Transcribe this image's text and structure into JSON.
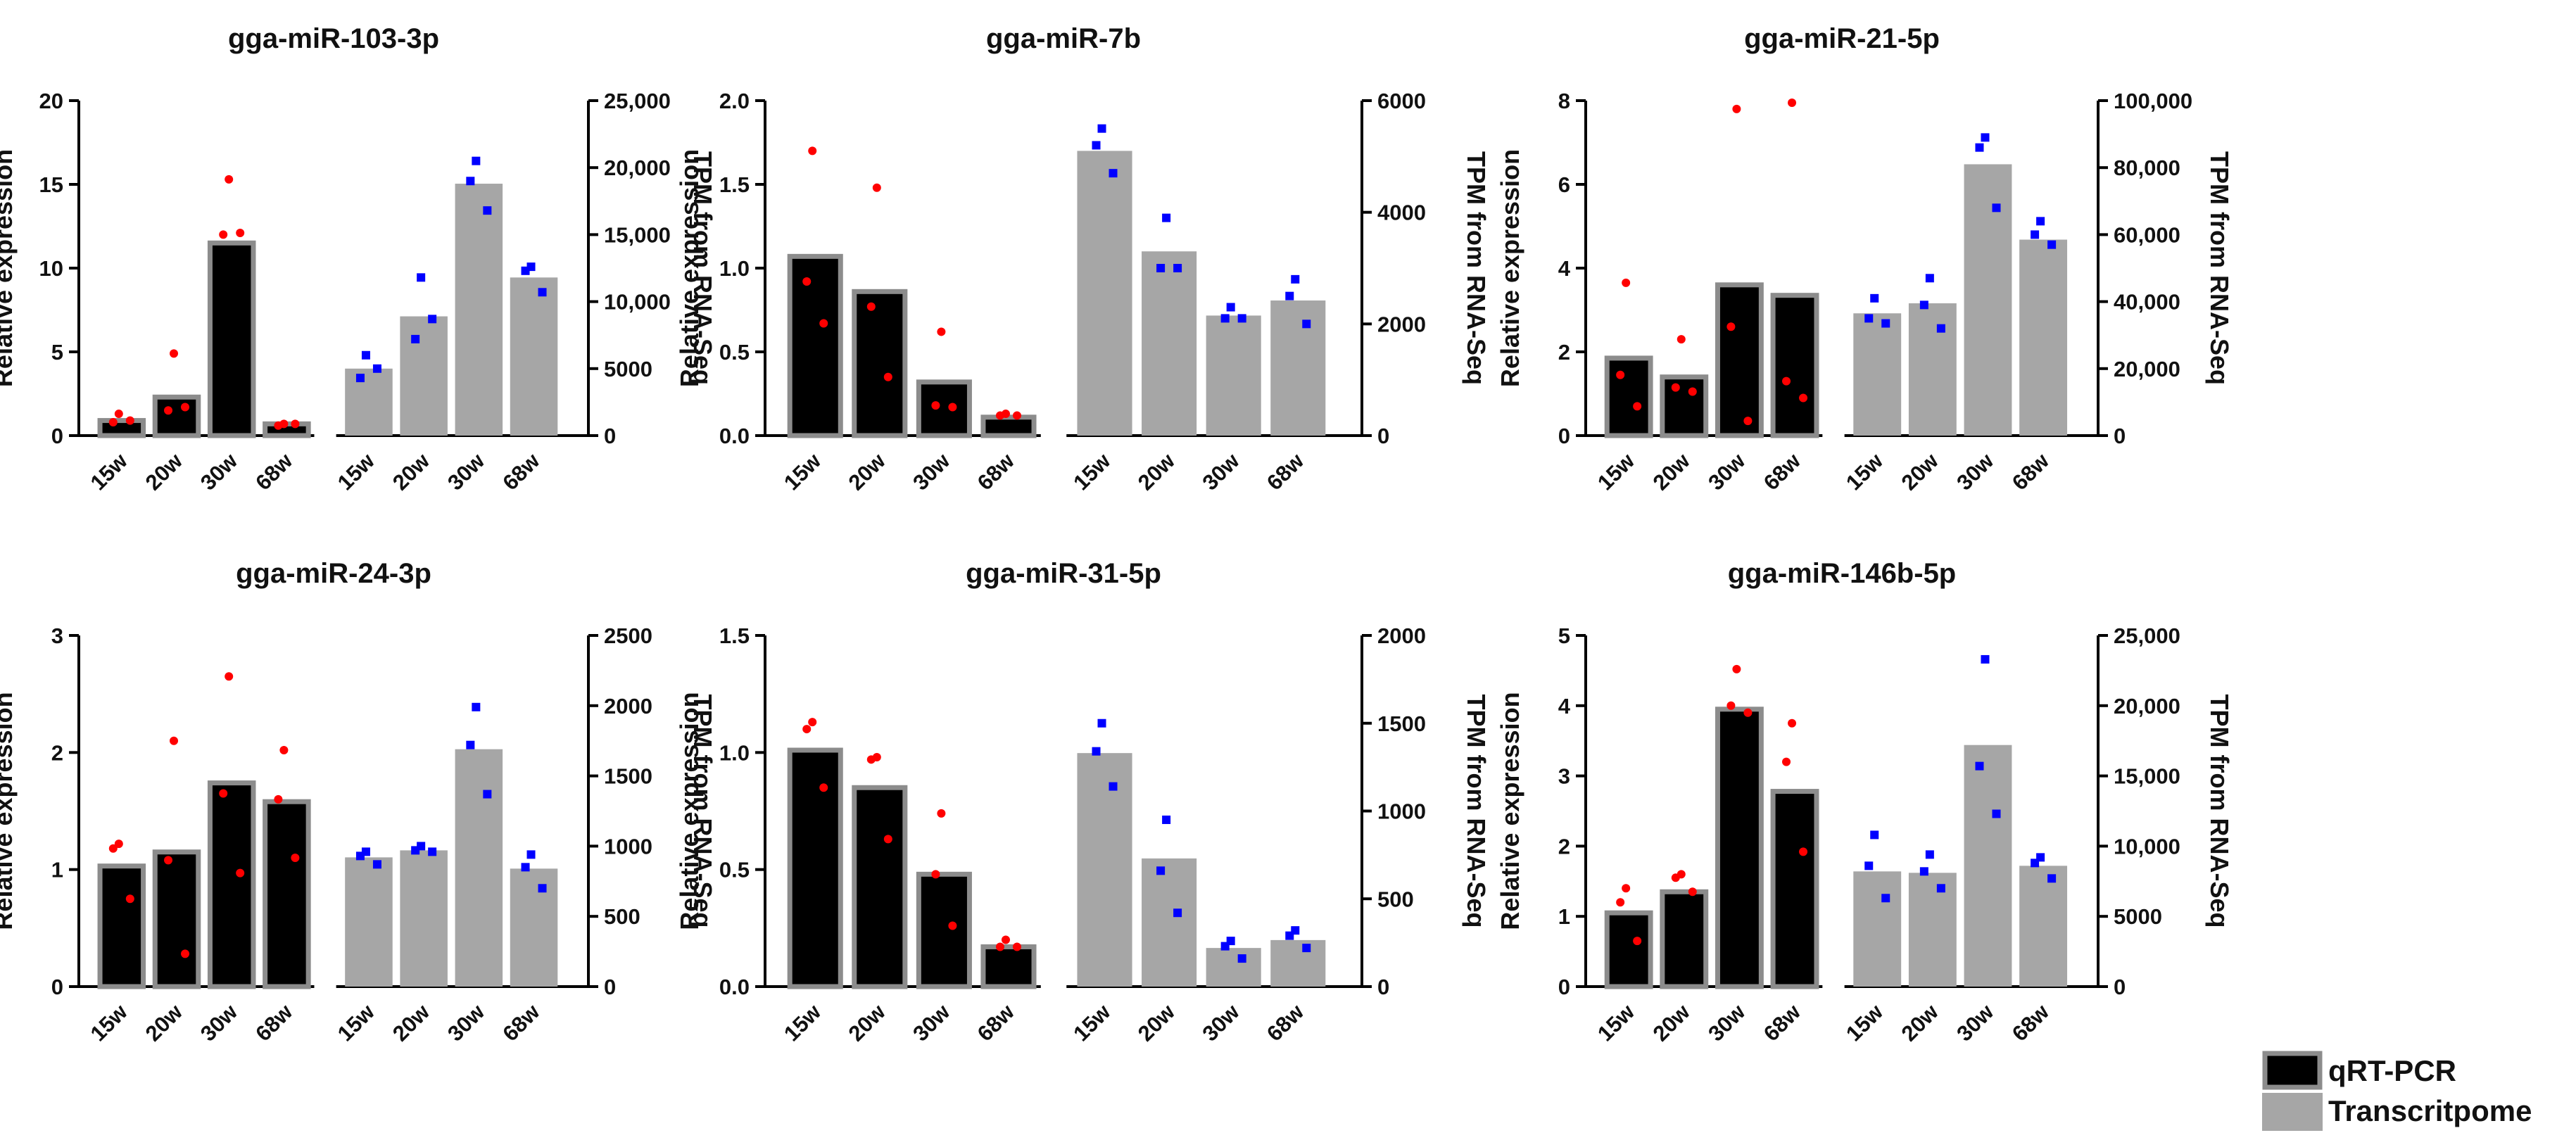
{
  "colors": {
    "qrt_bar": "#000000",
    "qrt_border": "#8c8c8c",
    "transcriptome_bar": "#a6a6a6",
    "qrt_point": "#ff0000",
    "transcriptome_point": "#0000ff",
    "axis": "#000000"
  },
  "legend": {
    "items": [
      {
        "label": "qRT-PCR",
        "color": "#000000",
        "border": "#8c8c8c"
      },
      {
        "label": "Transcritpome",
        "color": "#a6a6a6",
        "border": "#a6a6a6"
      }
    ]
  },
  "chart_data": [
    {
      "type": "bar",
      "title": "gga-miR-103-3p",
      "categories": [
        "15w",
        "20w",
        "30w",
        "68w"
      ],
      "ylabel_left": "Relative expression",
      "ylabel_right": "TPM from RNA-Seq",
      "ylim_left": [
        0,
        20
      ],
      "ylim_right": [
        0,
        25000
      ],
      "yticks_left": [
        0,
        5,
        10,
        15,
        20
      ],
      "yticks_left_labels": [
        "0",
        "5",
        "10",
        "15",
        "20"
      ],
      "yticks_right": [
        0,
        5000,
        10000,
        15000,
        20000,
        25000
      ],
      "yticks_right_labels": [
        "0",
        "5000",
        "10,000",
        "15,000",
        "20,000",
        "25,000"
      ],
      "series": [
        {
          "name": "qRT-PCR",
          "axis": "left",
          "values": [
            0.9,
            2.3,
            11.5,
            0.7
          ],
          "points": [
            [
              1.3,
              0.8,
              0.9
            ],
            [
              4.9,
              1.5,
              1.7
            ],
            [
              15.3,
              12.0,
              12.1
            ],
            [
              0.7,
              0.6,
              0.7
            ]
          ]
        },
        {
          "name": "Transcritpome",
          "axis": "right",
          "values": [
            5000,
            8900,
            18800,
            11800
          ],
          "points": [
            [
              6000,
              4300,
              5000
            ],
            [
              11800,
              7200,
              8700
            ],
            [
              20500,
              19000,
              16800
            ],
            [
              12600,
              12300,
              10700
            ]
          ]
        }
      ]
    },
    {
      "type": "bar",
      "title": "gga-miR-7b",
      "categories": [
        "15w",
        "20w",
        "30w",
        "68w"
      ],
      "ylabel_left": "Relative expression",
      "ylabel_right": "TPM from RNA-Seq",
      "ylim_left": [
        0,
        2.0
      ],
      "ylim_right": [
        0,
        6000
      ],
      "yticks_left": [
        0,
        0.5,
        1.0,
        1.5,
        2.0
      ],
      "yticks_left_labels": [
        "0.0",
        "0.5",
        "1.0",
        "1.5",
        "2.0"
      ],
      "yticks_right": [
        0,
        2000,
        4000,
        6000
      ],
      "yticks_right_labels": [
        "0",
        "2000",
        "4000",
        "6000"
      ],
      "series": [
        {
          "name": "qRT-PCR",
          "axis": "left",
          "values": [
            1.07,
            0.86,
            0.32,
            0.11
          ],
          "points": [
            [
              1.7,
              0.92,
              0.67
            ],
            [
              1.48,
              0.77,
              0.35
            ],
            [
              0.62,
              0.18,
              0.17
            ],
            [
              0.13,
              0.12,
              0.12
            ]
          ]
        },
        {
          "name": "Transcritpome",
          "axis": "right",
          "values": [
            5100,
            3300,
            2150,
            2420
          ],
          "points": [
            [
              5500,
              5200,
              4700
            ],
            [
              3900,
              3000,
              3000
            ],
            [
              2300,
              2100,
              2100
            ],
            [
              2800,
              2500,
              2000
            ]
          ]
        }
      ]
    },
    {
      "type": "bar",
      "title": "gga-miR-21-5p",
      "categories": [
        "15w",
        "20w",
        "30w",
        "68w"
      ],
      "ylabel_left": "Relative expression",
      "ylabel_right": "TPM from RNA-Seq",
      "ylim_left": [
        0,
        8
      ],
      "ylim_right": [
        0,
        100000
      ],
      "yticks_left": [
        0,
        2,
        4,
        6,
        8
      ],
      "yticks_left_labels": [
        "0",
        "2",
        "4",
        "6",
        "8"
      ],
      "yticks_right": [
        0,
        20000,
        40000,
        60000,
        80000,
        100000
      ],
      "yticks_right_labels": [
        "0",
        "20,000",
        "40,000",
        "60,000",
        "80,000",
        "100,000"
      ],
      "series": [
        {
          "name": "qRT-PCR",
          "axis": "left",
          "values": [
            1.85,
            1.4,
            3.6,
            3.35
          ],
          "points": [
            [
              3.65,
              1.45,
              0.7
            ],
            [
              2.3,
              1.15,
              1.05
            ],
            [
              7.8,
              2.6,
              0.35
            ],
            [
              7.95,
              1.3,
              0.9
            ]
          ]
        },
        {
          "name": "Transcritpome",
          "axis": "right",
          "values": [
            36500,
            39500,
            81000,
            58500
          ],
          "points": [
            [
              41000,
              35000,
              33500
            ],
            [
              47000,
              39000,
              32000
            ],
            [
              89000,
              86000,
              68000
            ],
            [
              64000,
              60000,
              57000
            ]
          ]
        }
      ]
    },
    {
      "type": "bar",
      "title": "gga-miR-24-3p",
      "categories": [
        "15w",
        "20w",
        "30w",
        "68w"
      ],
      "ylabel_left": "Relative expression",
      "ylabel_right": "TPM from RNA-Seq",
      "ylim_left": [
        0,
        3
      ],
      "ylim_right": [
        0,
        2500
      ],
      "yticks_left": [
        0,
        1,
        2,
        3
      ],
      "yticks_left_labels": [
        "0",
        "1",
        "2",
        "3"
      ],
      "yticks_right": [
        0,
        500,
        1000,
        1500,
        2000,
        2500
      ],
      "yticks_right_labels": [
        "0",
        "500",
        "1000",
        "1500",
        "2000",
        "2500"
      ],
      "series": [
        {
          "name": "qRT-PCR",
          "axis": "left",
          "values": [
            1.03,
            1.15,
            1.74,
            1.58
          ],
          "points": [
            [
              1.22,
              1.18,
              0.75
            ],
            [
              2.1,
              1.08,
              0.28
            ],
            [
              2.65,
              1.65,
              0.97
            ],
            [
              2.02,
              1.6,
              1.1
            ]
          ]
        },
        {
          "name": "Transcritpome",
          "axis": "right",
          "values": [
            920,
            970,
            1690,
            840
          ],
          "points": [
            [
              960,
              930,
              870
            ],
            [
              1000,
              970,
              960
            ],
            [
              1990,
              1720,
              1370
            ],
            [
              940,
              850,
              700
            ]
          ]
        }
      ]
    },
    {
      "type": "bar",
      "title": "gga-miR-31-5p",
      "categories": [
        "15w",
        "20w",
        "30w",
        "68w"
      ],
      "ylabel_left": "Relative expression",
      "ylabel_right": "TPM from RNA-Seq",
      "ylim_left": [
        0,
        1.5
      ],
      "ylim_right": [
        0,
        2000
      ],
      "yticks_left": [
        0,
        0.5,
        1.0,
        1.5
      ],
      "yticks_left_labels": [
        "0.0",
        "0.5",
        "1.0",
        "1.5"
      ],
      "yticks_right": [
        0,
        500,
        1000,
        1500,
        2000
      ],
      "yticks_right_labels": [
        "0",
        "500",
        "1000",
        "1500",
        "2000"
      ],
      "series": [
        {
          "name": "qRT-PCR",
          "axis": "left",
          "values": [
            1.01,
            0.85,
            0.48,
            0.17
          ],
          "points": [
            [
              1.13,
              1.1,
              0.85
            ],
            [
              0.98,
              0.97,
              0.63
            ],
            [
              0.74,
              0.48,
              0.26
            ],
            [
              0.2,
              0.17,
              0.17
            ]
          ]
        },
        {
          "name": "Transcritpome",
          "axis": "right",
          "values": [
            1330,
            730,
            220,
            265
          ],
          "points": [
            [
              1500,
              1340,
              1140
            ],
            [
              950,
              660,
              420
            ],
            [
              260,
              230,
              160
            ],
            [
              320,
              290,
              220
            ]
          ]
        }
      ]
    },
    {
      "type": "bar",
      "title": "gga-miR-146b-5p",
      "categories": [
        "15w",
        "20w",
        "30w",
        "68w"
      ],
      "ylabel_left": "Relative expression",
      "ylabel_right": "TPM from RNA-Seq",
      "ylim_left": [
        0,
        5
      ],
      "ylim_right": [
        0,
        25000
      ],
      "yticks_left": [
        0,
        1,
        2,
        3,
        4,
        5
      ],
      "yticks_left_labels": [
        "0",
        "1",
        "2",
        "3",
        "4",
        "5"
      ],
      "yticks_right": [
        0,
        5000,
        10000,
        15000,
        20000,
        25000
      ],
      "yticks_right_labels": [
        "0",
        "5000",
        "10,000",
        "15,000",
        "20,000",
        "25,000"
      ],
      "series": [
        {
          "name": "qRT-PCR",
          "axis": "left",
          "values": [
            1.05,
            1.35,
            3.95,
            2.78
          ],
          "points": [
            [
              1.4,
              1.2,
              0.65
            ],
            [
              1.6,
              1.55,
              1.35
            ],
            [
              4.52,
              4.0,
              3.9
            ],
            [
              3.75,
              3.2,
              1.92
            ]
          ]
        },
        {
          "name": "Transcritpome",
          "axis": "right",
          "values": [
            8200,
            8100,
            17200,
            8600
          ],
          "points": [
            [
              10800,
              8600,
              6300
            ],
            [
              9400,
              8200,
              7000
            ],
            [
              23300,
              15700,
              12300
            ],
            [
              9200,
              8800,
              7700
            ]
          ]
        }
      ]
    }
  ]
}
